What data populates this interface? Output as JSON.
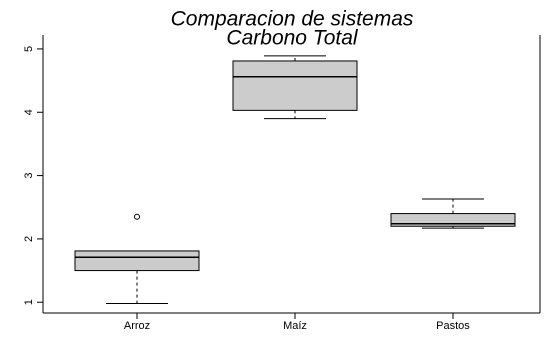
{
  "chart_data": {
    "type": "boxplot",
    "title": [
      "Comparacion de sistemas",
      "Carbono Total"
    ],
    "categories": [
      "Arroz",
      "Maíz",
      "Pastos"
    ],
    "color": "#cccccc",
    "stats": [
      {
        "min": 0.98,
        "q1": 1.5,
        "median": 1.71,
        "q3": 1.81,
        "max": 1.81,
        "outliers": [
          2.35
        ]
      },
      {
        "min": 3.9,
        "q1": 4.03,
        "median": 4.56,
        "q3": 4.81,
        "max": 4.89,
        "outliers": []
      },
      {
        "min": 2.17,
        "q1": 2.2,
        "median": 2.24,
        "q3": 2.4,
        "max": 2.63,
        "outliers": []
      }
    ],
    "ylim": [
      0.83,
      5.22
    ],
    "yticks": [
      1,
      2,
      3,
      4,
      5
    ]
  }
}
